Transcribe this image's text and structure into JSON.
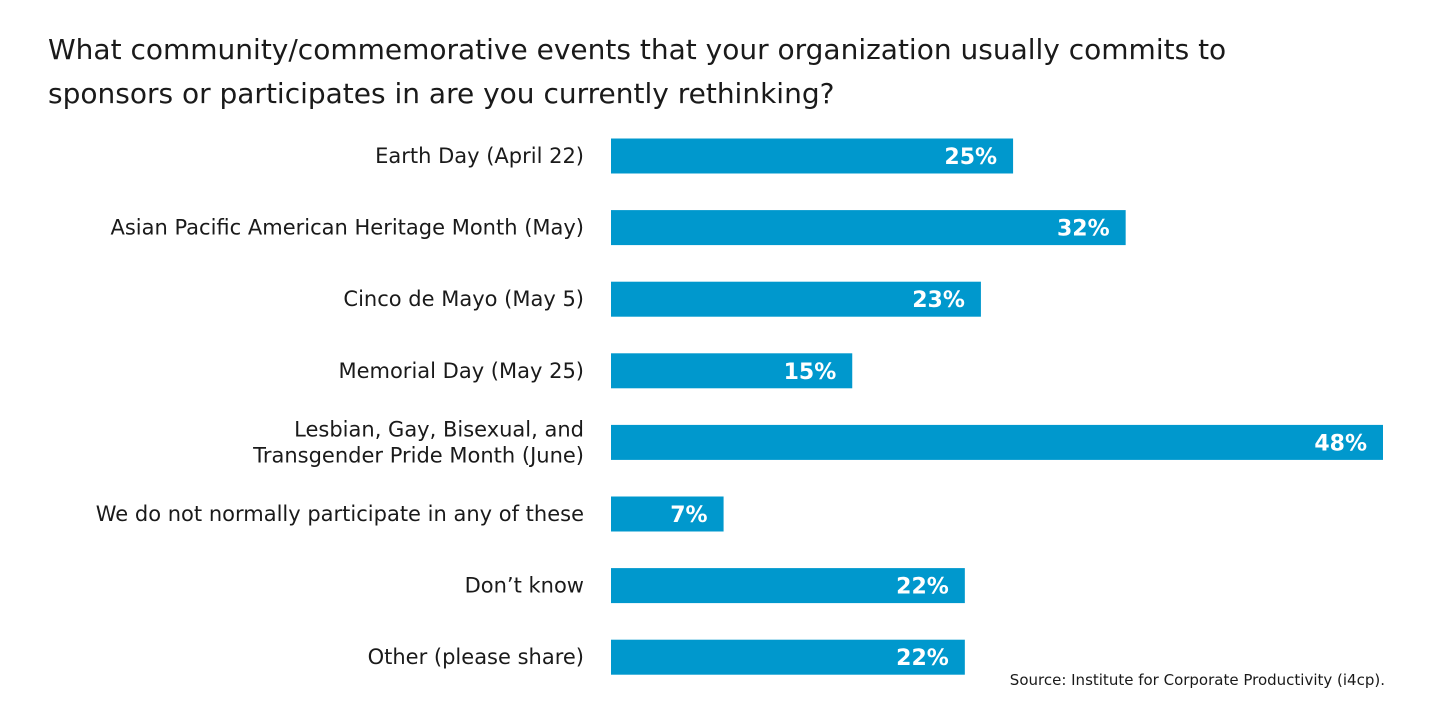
{
  "chart_data": {
    "type": "bar",
    "orientation": "horizontal",
    "title": "What community/commemorative events that your organization usually commits to sponsors or participates in are you currently rethinking?",
    "categories": [
      [
        "Earth Day (April 22)"
      ],
      [
        "Asian Pacific American Heritage Month (May)"
      ],
      [
        "Cinco de Mayo (May 5)"
      ],
      [
        "Memorial Day (May 25)"
      ],
      [
        "Lesbian, Gay, Bisexual, and",
        "Transgender Pride Month (June)"
      ],
      [
        "We do not normally participate in any of these"
      ],
      [
        "Don’t know"
      ],
      [
        "Other (please share)"
      ]
    ],
    "values": [
      25,
      32,
      23,
      15,
      48,
      7,
      22,
      22
    ],
    "value_labels": [
      "25%",
      "32%",
      "23%",
      "15%",
      "48%",
      "7%",
      "22%",
      "22%"
    ],
    "unit": "%",
    "xlim": [
      0,
      48
    ],
    "grid": false,
    "legend": "none",
    "bar_color": "#0098cd",
    "value_label_color": "#ffffff"
  },
  "source": "Source: Institute for Corporate Productivity (i4cp)."
}
